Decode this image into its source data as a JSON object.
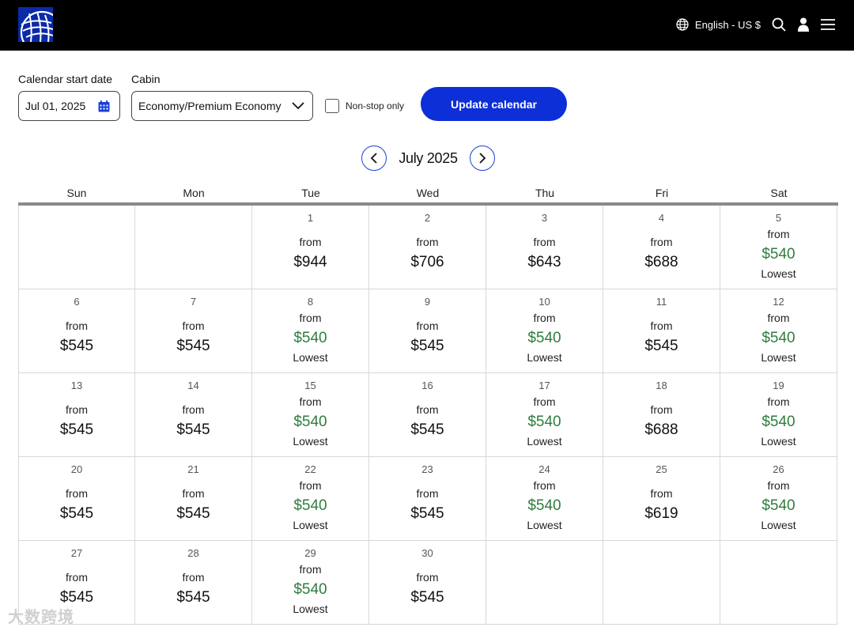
{
  "header": {
    "language_label": "English - US $"
  },
  "controls": {
    "start_date_label": "Calendar start date",
    "start_date_value": "Jul 01, 2025",
    "cabin_label": "Cabin",
    "cabin_value": "Economy/Premium Economy",
    "nonstop_label": "Non-stop only",
    "nonstop_checked": false,
    "update_button": "Update calendar"
  },
  "calendar": {
    "month_label": "July 2025",
    "weekdays": [
      "Sun",
      "Mon",
      "Tue",
      "Wed",
      "Thu",
      "Fri",
      "Sat"
    ],
    "from_label": "from",
    "lowest_label": "Lowest",
    "lowest_color": "#2f7d3e",
    "weeks": [
      [
        null,
        null,
        {
          "day": "1",
          "price": "$944",
          "lowest": false
        },
        {
          "day": "2",
          "price": "$706",
          "lowest": false
        },
        {
          "day": "3",
          "price": "$643",
          "lowest": false
        },
        {
          "day": "4",
          "price": "$688",
          "lowest": false
        },
        {
          "day": "5",
          "price": "$540",
          "lowest": true
        }
      ],
      [
        {
          "day": "6",
          "price": "$545",
          "lowest": false
        },
        {
          "day": "7",
          "price": "$545",
          "lowest": false
        },
        {
          "day": "8",
          "price": "$540",
          "lowest": true
        },
        {
          "day": "9",
          "price": "$545",
          "lowest": false
        },
        {
          "day": "10",
          "price": "$540",
          "lowest": true
        },
        {
          "day": "11",
          "price": "$545",
          "lowest": false
        },
        {
          "day": "12",
          "price": "$540",
          "lowest": true
        }
      ],
      [
        {
          "day": "13",
          "price": "$545",
          "lowest": false
        },
        {
          "day": "14",
          "price": "$545",
          "lowest": false
        },
        {
          "day": "15",
          "price": "$540",
          "lowest": true
        },
        {
          "day": "16",
          "price": "$545",
          "lowest": false
        },
        {
          "day": "17",
          "price": "$540",
          "lowest": true
        },
        {
          "day": "18",
          "price": "$688",
          "lowest": false
        },
        {
          "day": "19",
          "price": "$540",
          "lowest": true
        }
      ],
      [
        {
          "day": "20",
          "price": "$545",
          "lowest": false
        },
        {
          "day": "21",
          "price": "$545",
          "lowest": false
        },
        {
          "day": "22",
          "price": "$540",
          "lowest": true
        },
        {
          "day": "23",
          "price": "$545",
          "lowest": false
        },
        {
          "day": "24",
          "price": "$540",
          "lowest": true
        },
        {
          "day": "25",
          "price": "$619",
          "lowest": false
        },
        {
          "day": "26",
          "price": "$540",
          "lowest": true
        }
      ],
      [
        {
          "day": "27",
          "price": "$545",
          "lowest": false
        },
        {
          "day": "28",
          "price": "$545",
          "lowest": false
        },
        {
          "day": "29",
          "price": "$540",
          "lowest": true
        },
        {
          "day": "30",
          "price": "$545",
          "lowest": false
        },
        null,
        null,
        null
      ]
    ]
  },
  "watermark": "大数跨境"
}
